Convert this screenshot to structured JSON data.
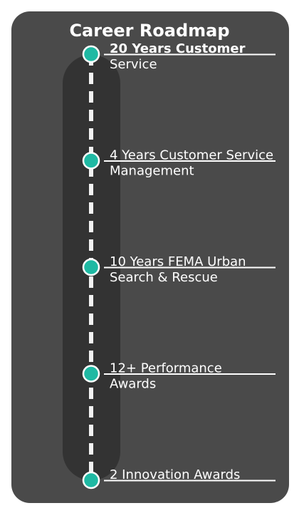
{
  "title": "Career Roadmap",
  "colors": {
    "card": "#4a4a4a",
    "track": "#333333",
    "dash": "#f2f2f2",
    "node": "#1fb9a3",
    "node_stroke": "#ffffff",
    "text": "#ffffff"
  },
  "milestones": [
    {
      "line1": "20 Years Customer",
      "line2": "Service",
      "bold": true
    },
    {
      "line1": "4 Years Customer Service",
      "line2": "Management",
      "bold": false
    },
    {
      "line1": "10 Years FEMA Urban",
      "line2": "Search & Rescue",
      "bold": false
    },
    {
      "line1": "12+ Performance",
      "line2": "Awards",
      "bold": false
    },
    {
      "line1": "2 Innovation Awards",
      "line2": "",
      "bold": false
    }
  ]
}
